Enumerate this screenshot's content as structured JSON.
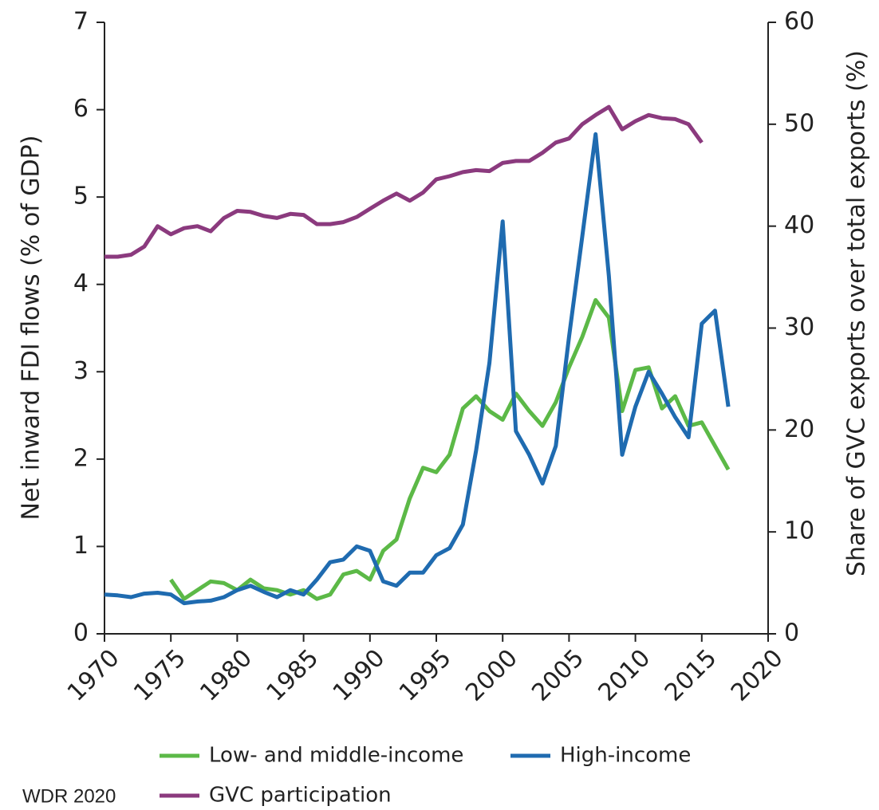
{
  "chart_data": {
    "type": "line",
    "x": [
      1970,
      1971,
      1972,
      1973,
      1974,
      1975,
      1976,
      1977,
      1978,
      1979,
      1980,
      1981,
      1982,
      1983,
      1984,
      1985,
      1986,
      1987,
      1988,
      1989,
      1990,
      1991,
      1992,
      1993,
      1994,
      1995,
      1996,
      1997,
      1998,
      1999,
      2000,
      2001,
      2002,
      2003,
      2004,
      2005,
      2006,
      2007,
      2008,
      2009,
      2010,
      2011,
      2012,
      2013,
      2014,
      2015,
      2016,
      2017
    ],
    "series": [
      {
        "name": "Low- and middle-income",
        "color": "#5cb947",
        "values": [
          null,
          null,
          null,
          null,
          null,
          0.62,
          0.4,
          0.5,
          0.6,
          0.58,
          0.5,
          0.62,
          0.52,
          0.5,
          0.45,
          0.5,
          0.4,
          0.45,
          0.68,
          0.72,
          0.62,
          0.95,
          1.08,
          1.55,
          1.9,
          1.85,
          2.05,
          2.58,
          2.72,
          2.55,
          2.45,
          2.75,
          2.55,
          2.38,
          2.65,
          3.05,
          3.4,
          3.82,
          3.62,
          2.55,
          3.02,
          3.05,
          2.58,
          2.72,
          2.38,
          2.42,
          2.15,
          1.88
        ]
      },
      {
        "name": "High-income",
        "color": "#1f6bb0",
        "values": [
          0.45,
          0.44,
          0.42,
          0.46,
          0.47,
          0.45,
          0.35,
          0.37,
          0.38,
          0.42,
          0.5,
          0.55,
          0.48,
          0.42,
          0.5,
          0.45,
          0.62,
          0.82,
          0.85,
          1.0,
          0.95,
          0.6,
          0.55,
          0.7,
          0.7,
          0.9,
          0.98,
          1.25,
          2.1,
          3.1,
          4.72,
          2.32,
          2.05,
          1.72,
          2.15,
          3.4,
          4.55,
          5.72,
          4.1,
          2.05,
          2.6,
          3.0,
          2.75,
          2.48,
          2.25,
          3.55,
          3.7,
          2.6
        ]
      },
      {
        "name": "GVC participation",
        "color": "#8b3a7e",
        "axis": "y2",
        "values": [
          37.0,
          37.0,
          37.2,
          38.0,
          40.0,
          39.2,
          39.8,
          40.0,
          39.5,
          40.8,
          41.5,
          41.4,
          41.0,
          40.8,
          41.2,
          41.1,
          40.2,
          40.2,
          40.4,
          40.9,
          41.7,
          42.5,
          43.2,
          42.5,
          43.3,
          44.6,
          44.9,
          45.3,
          45.5,
          45.4,
          46.2,
          46.4,
          46.4,
          47.2,
          48.2,
          48.6,
          50.0,
          50.9,
          51.7,
          49.5,
          50.3,
          50.9,
          50.6,
          50.5,
          50.0,
          48.2,
          null,
          null
        ]
      }
    ],
    "y_label": "Net inward FDI flows (% of GDP)",
    "y2_label": "Share of GVC exports over total exports (%)",
    "source": "WDR 2020",
    "xlim": [
      1970,
      2020
    ],
    "xticks": [
      1970,
      1975,
      1980,
      1985,
      1990,
      1995,
      2000,
      2005,
      2010,
      2015,
      2020
    ],
    "ylim": [
      0,
      7
    ],
    "yticks": [
      0,
      1,
      2,
      3,
      4,
      5,
      6,
      7
    ],
    "y2lim": [
      0,
      60
    ],
    "y2ticks": [
      0,
      10,
      20,
      30,
      40,
      50,
      60
    ]
  }
}
